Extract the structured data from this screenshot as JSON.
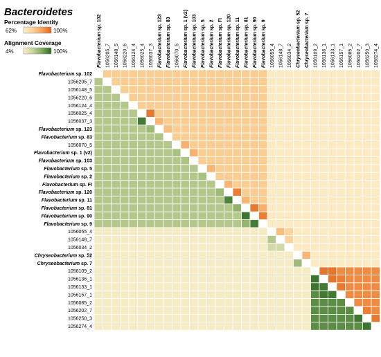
{
  "chart_data": {
    "type": "heatmap",
    "title": "Bacteroidetes",
    "legend": [
      {
        "name": "Percentage Identity",
        "min_label": "62%",
        "max_label": "100%",
        "range": [
          62,
          100
        ],
        "colors": [
          "#fbeec9",
          "#fbd29a",
          "#f5a25a",
          "#e2661c"
        ]
      },
      {
        "name": "Alignment Coverage",
        "min_label": "4%",
        "max_label": "100%",
        "range": [
          4,
          100
        ],
        "colors": [
          "#fbeec9",
          "#c9d4a0",
          "#7fa85a",
          "#2e6b27"
        ]
      }
    ],
    "upper_triangle": "Percentage Identity",
    "lower_triangle": "Alignment Coverage",
    "labels": [
      {
        "genus": "Flavobacterium",
        "suffix": "sp. 102"
      },
      {
        "genus": "",
        "suffix": "1056205_7"
      },
      {
        "genus": "",
        "suffix": "1056148_5"
      },
      {
        "genus": "",
        "suffix": "1056220_6"
      },
      {
        "genus": "",
        "suffix": "1056124_4"
      },
      {
        "genus": "",
        "suffix": "1056025_4"
      },
      {
        "genus": "",
        "suffix": "1056037_3"
      },
      {
        "genus": "Flavobacterium",
        "suffix": "sp. 123"
      },
      {
        "genus": "Flavobacterium",
        "suffix": "sp. 83"
      },
      {
        "genus": "",
        "suffix": "1056070_5"
      },
      {
        "genus": "Flavobacterium",
        "suffix": "sp. 1 (v2)"
      },
      {
        "genus": "Flavobacterium",
        "suffix": "sp. 103"
      },
      {
        "genus": "Flavobacterium",
        "suffix": "sp. 5"
      },
      {
        "genus": "Flavobacterium",
        "suffix": "sp. 2"
      },
      {
        "genus": "Flavobacterium",
        "suffix": "sp. FI"
      },
      {
        "genus": "Flavobacterium",
        "suffix": "sp. 120"
      },
      {
        "genus": "Flavobacterium",
        "suffix": "sp. 11"
      },
      {
        "genus": "Flavobacterium",
        "suffix": "sp. 81"
      },
      {
        "genus": "Flavobacterium",
        "suffix": "sp. 90"
      },
      {
        "genus": "Flavobacterium",
        "suffix": "sp. 9"
      },
      {
        "genus": "",
        "suffix": "1056055_4"
      },
      {
        "genus": "",
        "suffix": "1056148_7"
      },
      {
        "genus": "",
        "suffix": "1056034_2"
      },
      {
        "genus": "Chryseobacterium",
        "suffix": "sp. 52"
      },
      {
        "genus": "Chryseobacterium",
        "suffix": "sp. 7"
      },
      {
        "genus": "",
        "suffix": "1056109_2"
      },
      {
        "genus": "",
        "suffix": "1056136_1"
      },
      {
        "genus": "",
        "suffix": "1056133_1"
      },
      {
        "genus": "",
        "suffix": "1056157_1"
      },
      {
        "genus": "",
        "suffix": "1056085_2"
      },
      {
        "genus": "",
        "suffix": "1056202_7"
      },
      {
        "genus": "",
        "suffix": "1056250_3"
      },
      {
        "genus": "",
        "suffix": "1056274_4"
      }
    ],
    "groups": [
      {
        "name": "Flavobacterium",
        "start": 0,
        "end": 19,
        "identity": 76,
        "coverage": 45
      },
      {
        "name": "",
        "start": 20,
        "end": 22,
        "identity": 74,
        "coverage": 30
      },
      {
        "name": "Chryseobacterium",
        "start": 23,
        "end": 24,
        "identity": 78,
        "coverage": 45
      },
      {
        "name": "",
        "start": 25,
        "end": 32,
        "identity": 92,
        "coverage": 82
      }
    ],
    "background": {
      "identity": 64,
      "coverage": 8
    },
    "highlights": [
      {
        "row": 6,
        "col": 5,
        "identity": 96,
        "coverage": 92
      },
      {
        "row": 7,
        "col": 6,
        "identity": 82,
        "coverage": 55
      },
      {
        "row": 10,
        "col": 9,
        "identity": 83,
        "coverage": 50
      },
      {
        "row": 11,
        "col": 10,
        "identity": 83,
        "coverage": 48
      },
      {
        "row": 16,
        "col": 15,
        "identity": 95,
        "coverage": 88
      },
      {
        "row": 17,
        "col": 16,
        "identity": 82,
        "coverage": 60
      },
      {
        "row": 18,
        "col": 17,
        "identity": 96,
        "coverage": 95
      },
      {
        "row": 19,
        "col": 18,
        "identity": 95,
        "coverage": 90
      },
      {
        "row": 19,
        "col": 17,
        "identity": 84,
        "coverage": 58
      },
      {
        "row": 15,
        "col": 14,
        "identity": 82,
        "coverage": 55
      },
      {
        "row": 13,
        "col": 12,
        "identity": 82,
        "coverage": 50
      },
      {
        "row": 21,
        "col": 20,
        "identity": 80,
        "coverage": 45
      },
      {
        "row": 24,
        "col": 23,
        "identity": 82,
        "coverage": 55
      },
      {
        "row": 26,
        "col": 25,
        "identity": 97,
        "coverage": 95
      },
      {
        "row": 27,
        "col": 25,
        "identity": 97,
        "coverage": 95
      },
      {
        "row": 27,
        "col": 26,
        "identity": 97,
        "coverage": 92
      },
      {
        "row": 28,
        "col": 26,
        "identity": 95,
        "coverage": 92
      },
      {
        "row": 28,
        "col": 27,
        "identity": 96,
        "coverage": 92
      },
      {
        "row": 31,
        "col": 30,
        "identity": 95,
        "coverage": 93
      },
      {
        "row": 32,
        "col": 31,
        "identity": 96,
        "coverage": 95
      },
      {
        "row": 8,
        "col": 7,
        "identity": 80,
        "coverage": 48
      }
    ],
    "grid": true
  }
}
